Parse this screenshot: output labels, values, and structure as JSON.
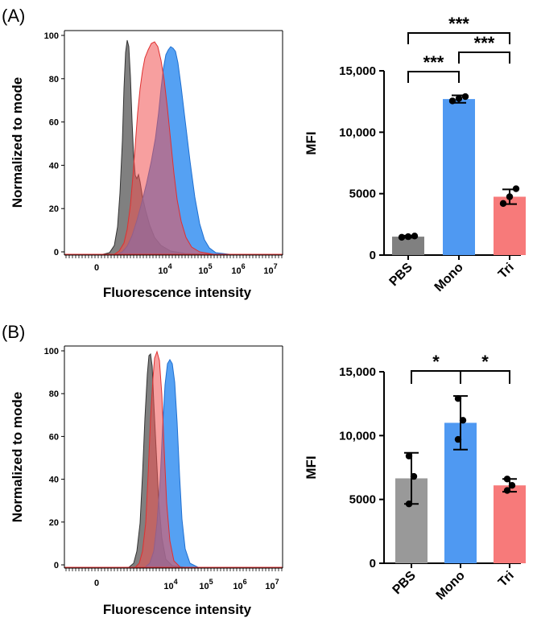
{
  "panels": [
    {
      "label": "(A)",
      "histogram": {
        "ylabel": "Normalized to mode",
        "xlabel": "Fluorescence intensity",
        "yticks": [
          "0",
          "20",
          "40",
          "60",
          "80",
          "100"
        ],
        "xticks": [
          {
            "base": "0",
            "exp": ""
          },
          {
            "base": "10",
            "exp": "4"
          },
          {
            "base": "10",
            "exp": "5"
          },
          {
            "base": "10",
            "exp": "6"
          },
          {
            "base": "10",
            "exp": "7"
          }
        ],
        "series_colors": {
          "PBS": "#4d4d4d",
          "Mono": "#1f7ae8",
          "Tri": "#ef4040"
        }
      },
      "chart_data": {
        "type": "bar",
        "ylabel": "MFI",
        "categories": [
          "PBS",
          "Mono",
          "Tri"
        ],
        "values": [
          1500,
          12700,
          4750
        ],
        "errors": [
          80,
          300,
          600
        ],
        "points": [
          [
            1450,
            1500,
            1550
          ],
          [
            12550,
            12750,
            12900
          ],
          [
            4200,
            4750,
            5400
          ]
        ],
        "colors": [
          "#808080",
          "#4f99f2",
          "#f77a7a"
        ],
        "ylim": [
          0,
          15000
        ],
        "yticks": [
          0,
          5000,
          10000,
          15000
        ],
        "ytick_labels": [
          "0",
          "5000",
          "10,000",
          "15,000"
        ],
        "significance": [
          {
            "from": 0,
            "to": 1,
            "label": "***",
            "level": 0
          },
          {
            "from": 1,
            "to": 2,
            "label": "***",
            "level": 1
          },
          {
            "from": 0,
            "to": 2,
            "label": "***",
            "level": 2
          }
        ]
      }
    },
    {
      "label": "(B)",
      "histogram": {
        "ylabel": "Normalized to mode",
        "xlabel": "Fluorescence intensity",
        "yticks": [
          "0",
          "20",
          "40",
          "60",
          "80",
          "100"
        ],
        "xticks": [
          {
            "base": "0",
            "exp": ""
          },
          {
            "base": "10",
            "exp": "4"
          },
          {
            "base": "10",
            "exp": "5"
          },
          {
            "base": "10",
            "exp": "6"
          },
          {
            "base": "10",
            "exp": "7"
          }
        ],
        "series_colors": {
          "PBS": "#4d4d4d",
          "Mono": "#1f7ae8",
          "Tri": "#ef4040"
        }
      },
      "chart_data": {
        "type": "bar",
        "ylabel": "MFI",
        "categories": [
          "PBS",
          "Mono",
          "Tri"
        ],
        "values": [
          6650,
          11000,
          6100
        ],
        "errors": [
          2000,
          2100,
          500
        ],
        "points": [
          [
            4650,
            6800,
            8400
          ],
          [
            9700,
            11200,
            12900
          ],
          [
            5700,
            6100,
            6600
          ]
        ],
        "colors": [
          "#999999",
          "#4f99f2",
          "#f77a7a"
        ],
        "ylim": [
          0,
          15000
        ],
        "yticks": [
          0,
          5000,
          10000,
          15000
        ],
        "ytick_labels": [
          "0",
          "5000",
          "10,000",
          "15,000"
        ],
        "significance": [
          {
            "from": 0,
            "to": 1,
            "label": "*",
            "level": 0
          },
          {
            "from": 1,
            "to": 2,
            "label": "*",
            "level": 0
          }
        ]
      }
    }
  ]
}
